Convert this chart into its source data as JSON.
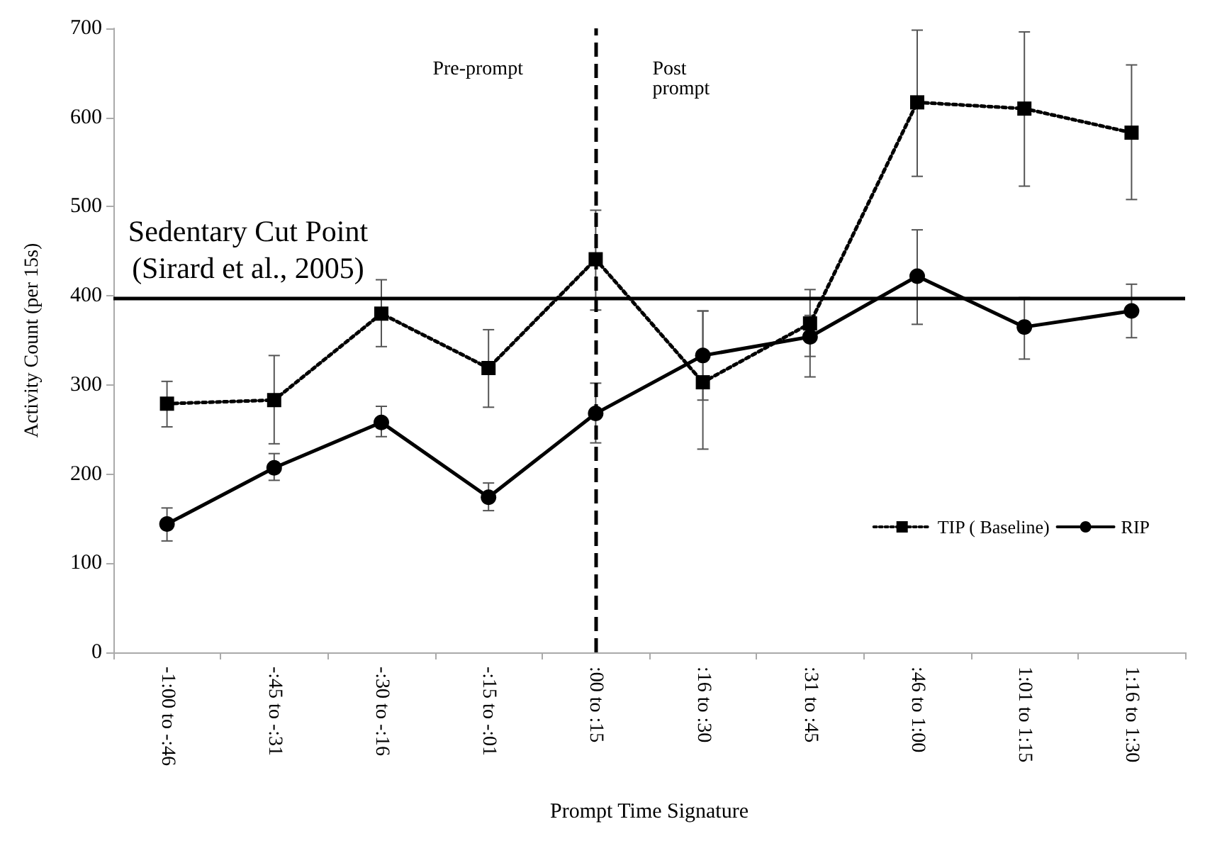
{
  "chart_data": {
    "type": "line",
    "xlabel": "Prompt Time Signature",
    "ylabel": "Activity Count (per 15s)",
    "categories": [
      "-1:00 to -:46",
      "-:45 to -:31",
      "-:30 to -:16",
      "-:15 to -:01",
      ":00 to :15",
      ":16 to :30",
      ":31 to :45",
      ":46 to 1:00",
      "1:01 to 1:15",
      "1:16 to 1:30"
    ],
    "series": [
      {
        "name": "TIP ( Baseline)",
        "color": "#000000",
        "marker": "square",
        "line_style": "dotted",
        "values": [
          279,
          283,
          380,
          319,
          441,
          303,
          369,
          617,
          610,
          583
        ],
        "errors": [
          [
            253,
            304
          ],
          [
            234,
            333
          ],
          [
            343,
            418
          ],
          [
            275,
            362
          ],
          [
            384,
            496
          ],
          [
            228,
            383
          ],
          [
            332,
            407
          ],
          [
            534,
            698
          ],
          [
            523,
            696
          ],
          [
            508,
            659
          ]
        ]
      },
      {
        "name": "RIP",
        "color": "#000000",
        "marker": "circle",
        "line_style": "solid",
        "values": [
          144,
          207,
          258,
          174,
          268,
          333,
          354,
          422,
          365,
          383
        ],
        "errors": [
          [
            125,
            162
          ],
          [
            193,
            223
          ],
          [
            242,
            276
          ],
          [
            159,
            190
          ],
          [
            235,
            302
          ],
          [
            283,
            383
          ],
          [
            309,
            378
          ],
          [
            368,
            474
          ],
          [
            329,
            398
          ],
          [
            353,
            413
          ]
        ]
      }
    ],
    "ylim": [
      0,
      700
    ],
    "yticks": [
      0,
      100,
      200,
      300,
      400,
      500,
      600,
      700
    ],
    "grid": false,
    "legend": "bottom right",
    "ref_lines": [
      {
        "axis": "y",
        "value": 398,
        "label": "Sedentary Cut Point\n(Sirard et al., 2005)",
        "color": "#000000",
        "line_style": "solid"
      },
      {
        "axis": "x",
        "value": ":00 to :15",
        "label": null,
        "color": "#000000",
        "line_style": "dashed"
      }
    ],
    "annotations": [
      "Pre-prompt",
      "Post\nprompt"
    ]
  }
}
